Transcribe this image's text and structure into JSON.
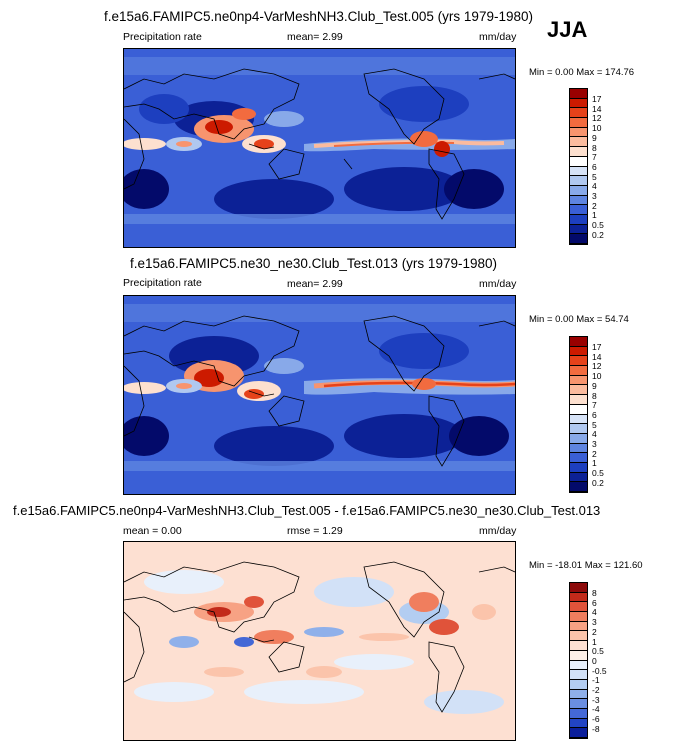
{
  "season": "JJA",
  "panels": [
    {
      "title": "f.e15a6.FAMIPC5.ne0np4-VarMeshNH3.Club_Test.005 (yrs 1979-1980)",
      "left_label": "Precipitation rate",
      "stat_label": "mean=  2.99",
      "units": "mm/day",
      "minmax": "Min =   0.00 Max = 174.76",
      "colorbar": {
        "labels": [
          "17",
          "14",
          "12",
          "10",
          "9",
          "8",
          "7",
          "6",
          "5",
          "4",
          "3",
          "2",
          "1",
          "0.5",
          "0.2"
        ],
        "colors": [
          "#990000",
          "#cc1a00",
          "#e6421a",
          "#f26b3f",
          "#f7946e",
          "#fbbb9e",
          "#fde0cf",
          "#ffffff",
          "#d7e3f7",
          "#b0c8f0",
          "#88a9e9",
          "#5e84e0",
          "#3a5fd6",
          "#1d3fbf",
          "#0c2196",
          "#030a6a"
        ]
      }
    },
    {
      "title": "f.e15a6.FAMIPC5.ne30_ne30.Club_Test.013 (yrs 1979-1980)",
      "left_label": "Precipitation rate",
      "stat_label": "mean=  2.99",
      "units": "mm/day",
      "minmax": "Min =   0.00 Max =  54.74",
      "colorbar": {
        "labels": [
          "17",
          "14",
          "12",
          "10",
          "9",
          "8",
          "7",
          "6",
          "5",
          "4",
          "3",
          "2",
          "1",
          "0.5",
          "0.2"
        ],
        "colors": [
          "#990000",
          "#cc1a00",
          "#e6421a",
          "#f26b3f",
          "#f7946e",
          "#fbbb9e",
          "#fde0cf",
          "#ffffff",
          "#d7e3f7",
          "#b0c8f0",
          "#88a9e9",
          "#5e84e0",
          "#3a5fd6",
          "#1d3fbf",
          "#0c2196",
          "#030a6a"
        ]
      }
    },
    {
      "title": "f.e15a6.FAMIPC5.ne0np4-VarMeshNH3.Club_Test.005 - f.e15a6.FAMIPC5.ne30_ne30.Club_Test.013",
      "left_label": "mean =   0.00",
      "stat_label": "rmse =   1.29",
      "units": "mm/day",
      "minmax": "Min = -18.01 Max = 121.60",
      "colorbar": {
        "labels": [
          "8",
          "6",
          "4",
          "3",
          "2",
          "1",
          "0.5",
          "0",
          "-0.5",
          "-1",
          "-2",
          "-3",
          "-4",
          "-6",
          "-8"
        ],
        "colors": [
          "#8c0a0a",
          "#c22a1a",
          "#e0533a",
          "#f07e5e",
          "#f7a284",
          "#fbc4ab",
          "#fde0d2",
          "#fdf0e8",
          "#e8f0fb",
          "#d2e1f7",
          "#b3cdf1",
          "#8fb0ea",
          "#6a8ee1",
          "#4468d6",
          "#2244c4",
          "#0a1e9a"
        ]
      }
    }
  ],
  "chart_data": [
    {
      "type": "heatmap",
      "title": "f.e15a6.FAMIPC5.ne0np4-VarMeshNH3.Club_Test.005 (yrs 1979-1980)",
      "variable": "Precipitation rate",
      "units": "mm/day",
      "mean": 2.99,
      "min": 0.0,
      "max": 174.76,
      "levels": [
        0.2,
        0.5,
        1,
        2,
        3,
        4,
        5,
        6,
        7,
        8,
        9,
        10,
        12,
        14,
        17
      ],
      "features": [
        "ITCZ band across Pacific and Atlantic near 10N",
        "Heavy rain over Indian monsoon / Bay of Bengal / SE Asia",
        "Dry subtropical oceans",
        "Storm tracks in southern mid-latitudes"
      ]
    },
    {
      "type": "heatmap",
      "title": "f.e15a6.FAMIPC5.ne30_ne30.Club_Test.013 (yrs 1979-1980)",
      "variable": "Precipitation rate",
      "units": "mm/day",
      "mean": 2.99,
      "min": 0.0,
      "max": 54.74,
      "levels": [
        0.2,
        0.5,
        1,
        2,
        3,
        4,
        5,
        6,
        7,
        8,
        9,
        10,
        12,
        14,
        17
      ],
      "features": [
        "ITCZ band across Pacific and Atlantic near 10N",
        "Heavy rain over Indian monsoon / Bay of Bengal / SE Asia",
        "Dry subtropical oceans",
        "Storm tracks in southern mid-latitudes"
      ]
    },
    {
      "type": "heatmap",
      "title": "f.e15a6.FAMIPC5.ne0np4-VarMeshNH3.Club_Test.005 - f.e15a6.FAMIPC5.ne30_ne30.Club_Test.013",
      "units": "mm/day",
      "mean": 0.0,
      "rmse": 1.29,
      "min": -18.01,
      "max": 121.6,
      "levels": [
        -8,
        -6,
        -4,
        -3,
        -2,
        -1,
        -0.5,
        0,
        0.5,
        1,
        2,
        3,
        4,
        6,
        8
      ]
    }
  ]
}
